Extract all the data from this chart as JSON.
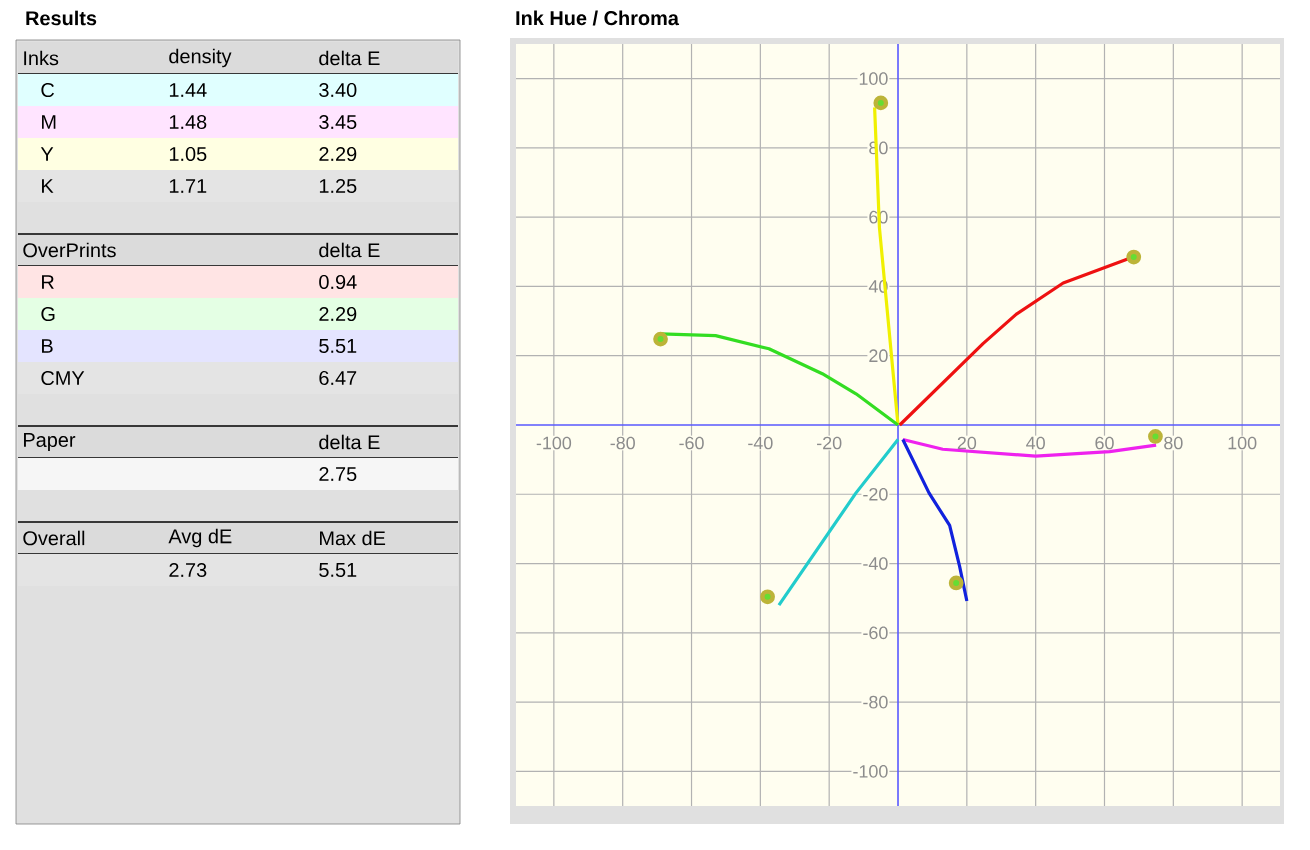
{
  "chart_data": [
    {
      "type": "other",
      "title": "Results",
      "annotations": [
        "Inks",
        "density",
        "delta E",
        "C",
        "1.44",
        "3.40",
        "M",
        "1.48",
        "3.45",
        "Y",
        "1.05",
        "2.29",
        "K",
        "1.71",
        "1.25",
        "OverPrints",
        "delta E",
        "R",
        "0.94",
        "G",
        "2.29",
        "B",
        "5.51",
        "CMY",
        "6.47",
        "Paper",
        "delta E",
        "2.75",
        "Overall",
        "Avg dE",
        "Max dE",
        "2.73",
        "5.51"
      ]
    },
    {
      "type": "line",
      "title": "Ink Hue / Chroma",
      "xlim": [
        -111,
        111
      ],
      "ylim": [
        -110,
        110
      ],
      "xticks": [
        -100,
        -80,
        -60,
        -40,
        -20,
        20,
        40,
        60,
        80,
        100
      ],
      "yticks": [
        -100,
        -80,
        -60,
        -40,
        -20,
        20,
        40,
        60,
        80,
        100
      ],
      "grid": true,
      "marker": "none",
      "line_style": "solid",
      "series": [
        {
          "color": "#f0f000",
          "x": [
            0,
            -5.4,
            -6.8
          ],
          "values": [
            0,
            57,
            91.7
          ]
        },
        {
          "color": "#ee1111",
          "x": [
            0.5,
            24.7,
            34.4,
            48,
            68.3
          ],
          "values": [
            0,
            23.5,
            32,
            41,
            48.5
          ]
        },
        {
          "color": "#33dd22",
          "x": [
            0,
            -12.2,
            -22,
            -37.5,
            -53,
            -69
          ],
          "values": [
            0,
            9,
            14.8,
            22,
            25.8,
            26.3
          ]
        },
        {
          "color": "#ee22ee",
          "x": [
            1.4,
            13,
            40,
            61.5,
            75
          ],
          "values": [
            -4.2,
            -7,
            -9,
            -7.7,
            -5.8
          ]
        },
        {
          "color": "#1122dd",
          "x": [
            1.4,
            9,
            15,
            17.9,
            20
          ],
          "values": [
            -4.2,
            -19.6,
            -29,
            -40.8,
            -50.8
          ]
        },
        {
          "color": "#22cccc",
          "x": [
            0,
            -12.2,
            -34.6
          ],
          "values": [
            -4.2,
            -19.6,
            -52
          ]
        },
        {
          "type": "scatter",
          "marker": "circle",
          "color": "#66dd33",
          "x": [
            -5,
            68.5,
            -69,
            74.8,
            16.9,
            -37.9
          ],
          "values": [
            93,
            48.5,
            24.8,
            -3.3,
            -45.6,
            -49.6
          ]
        }
      ]
    }
  ]
}
